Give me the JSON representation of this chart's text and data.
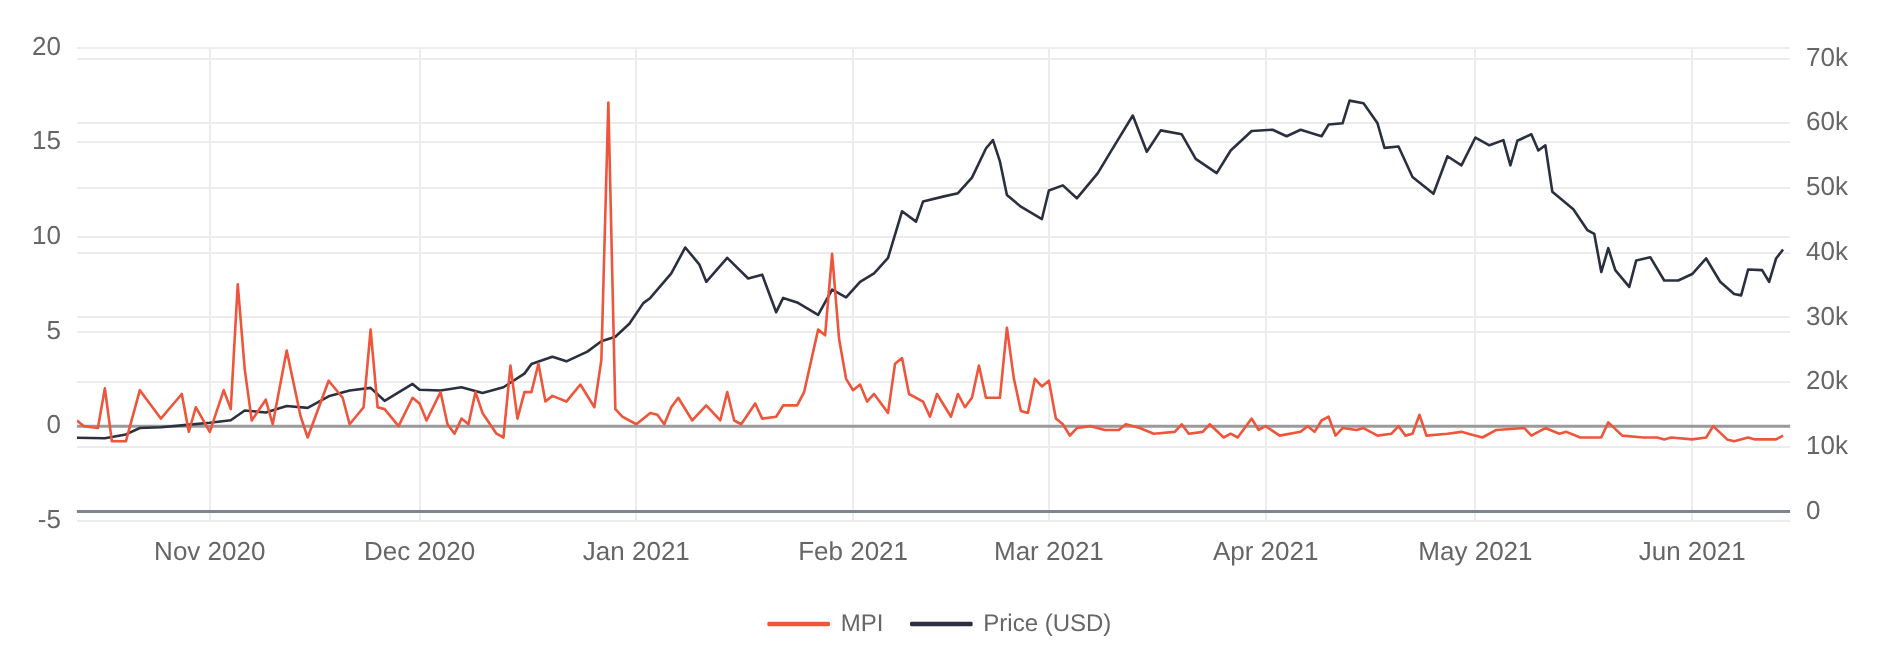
{
  "chart_data": {
    "type": "line",
    "xlim": [
      "2020-10-13",
      "2021-06-15"
    ],
    "xticks": [
      {
        "value": "2020-11-01",
        "label": "Nov 2020"
      },
      {
        "value": "2020-12-01",
        "label": "Dec 2020"
      },
      {
        "value": "2021-01-01",
        "label": "Jan 2021"
      },
      {
        "value": "2021-02-01",
        "label": "Feb 2021"
      },
      {
        "value": "2021-03-01",
        "label": "Mar 2021"
      },
      {
        "value": "2021-04-01",
        "label": "Apr 2021"
      },
      {
        "value": "2021-05-01",
        "label": "May 2021"
      },
      {
        "value": "2021-06-01",
        "label": "Jun 2021"
      }
    ],
    "ylim": [
      -5,
      20
    ],
    "yticks": [
      -5,
      0,
      5,
      10,
      15,
      20
    ],
    "y2lim": [
      -1450,
      71700
    ],
    "y2ticks": [
      {
        "value": 0,
        "label": "0"
      },
      {
        "value": 10000,
        "label": "10k"
      },
      {
        "value": 20000,
        "label": "20k"
      },
      {
        "value": 30000,
        "label": "30k"
      },
      {
        "value": 40000,
        "label": "40k"
      },
      {
        "value": 50000,
        "label": "50k"
      },
      {
        "value": 60000,
        "label": "60k"
      },
      {
        "value": 70000,
        "label": "70k"
      }
    ],
    "grid": true,
    "legend": "bottom",
    "marker": "none",
    "line_style": "solid",
    "ref_lines": [
      {
        "axis": "y",
        "value": 0,
        "color": "#9a9a9a"
      },
      {
        "axis": "y2",
        "value": 0,
        "color": "#7f8590"
      }
    ],
    "series": [
      {
        "name": "MPI",
        "color": "#ef553b",
        "x": [
          "2020-10-13",
          "2020-10-14",
          "2020-10-16",
          "2020-10-17",
          "2020-10-18",
          "2020-10-20",
          "2020-10-22",
          "2020-10-25",
          "2020-10-28",
          "2020-10-29",
          "2020-10-30",
          "2020-11-01",
          "2020-11-03",
          "2020-11-04",
          "2020-11-05",
          "2020-11-06",
          "2020-11-07",
          "2020-11-09",
          "2020-11-10",
          "2020-11-12",
          "2020-11-14",
          "2020-11-15",
          "2020-11-18",
          "2020-11-20",
          "2020-11-21",
          "2020-11-23",
          "2020-11-24",
          "2020-11-25",
          "2020-11-26",
          "2020-11-28",
          "2020-11-30",
          "2020-12-01",
          "2020-12-02",
          "2020-12-04",
          "2020-12-05",
          "2020-12-06",
          "2020-12-07",
          "2020-12-08",
          "2020-12-09",
          "2020-12-10",
          "2020-12-12",
          "2020-12-13",
          "2020-12-14",
          "2020-12-15",
          "2020-12-16",
          "2020-12-17",
          "2020-12-18",
          "2020-12-19",
          "2020-12-20",
          "2020-12-22",
          "2020-12-24",
          "2020-12-26",
          "2020-12-27",
          "2020-12-28",
          "2020-12-29",
          "2020-12-30",
          "2021-01-01",
          "2021-01-03",
          "2021-01-04",
          "2021-01-05",
          "2021-01-06",
          "2021-01-07",
          "2021-01-09",
          "2021-01-11",
          "2021-01-13",
          "2021-01-14",
          "2021-01-15",
          "2021-01-16",
          "2021-01-18",
          "2021-01-19",
          "2021-01-21",
          "2021-01-22",
          "2021-01-24",
          "2021-01-25",
          "2021-01-27",
          "2021-01-28",
          "2021-01-29",
          "2021-01-30",
          "2021-01-31",
          "2021-02-01",
          "2021-02-02",
          "2021-02-03",
          "2021-02-04",
          "2021-02-06",
          "2021-02-07",
          "2021-02-08",
          "2021-02-09",
          "2021-02-11",
          "2021-02-12",
          "2021-02-13",
          "2021-02-15",
          "2021-02-16",
          "2021-02-17",
          "2021-02-18",
          "2021-02-19",
          "2021-02-20",
          "2021-02-22",
          "2021-02-23",
          "2021-02-24",
          "2021-02-25",
          "2021-02-26",
          "2021-02-27",
          "2021-02-28",
          "2021-03-01",
          "2021-03-02",
          "2021-03-03",
          "2021-03-04",
          "2021-03-05",
          "2021-03-07",
          "2021-03-09",
          "2021-03-11",
          "2021-03-12",
          "2021-03-14",
          "2021-03-16",
          "2021-03-19",
          "2021-03-20",
          "2021-03-21",
          "2021-03-23",
          "2021-03-24",
          "2021-03-26",
          "2021-03-27",
          "2021-03-28",
          "2021-03-30",
          "2021-03-31",
          "2021-04-01",
          "2021-04-03",
          "2021-04-06",
          "2021-04-07",
          "2021-04-08",
          "2021-04-09",
          "2021-04-10",
          "2021-04-11",
          "2021-04-12",
          "2021-04-14",
          "2021-04-15",
          "2021-04-17",
          "2021-04-19",
          "2021-04-20",
          "2021-04-21",
          "2021-04-22",
          "2021-04-23",
          "2021-04-24",
          "2021-04-27",
          "2021-04-29",
          "2021-04-30",
          "2021-05-02",
          "2021-05-04",
          "2021-05-08",
          "2021-05-09",
          "2021-05-11",
          "2021-05-13",
          "2021-05-14",
          "2021-05-16",
          "2021-05-19",
          "2021-05-20",
          "2021-05-22",
          "2021-05-25",
          "2021-05-27",
          "2021-05-28",
          "2021-05-29",
          "2021-06-01",
          "2021-06-03",
          "2021-06-04",
          "2021-06-06",
          "2021-06-07",
          "2021-06-09",
          "2021-06-10",
          "2021-06-12",
          "2021-06-13",
          "2021-06-14"
        ],
        "values": [
          0.3,
          0,
          -0.1,
          2.0,
          -0.8,
          -0.8,
          1.9,
          0.4,
          1.7,
          -0.3,
          1.0,
          -0.3,
          1.9,
          0.9,
          7.5,
          3.0,
          0.3,
          1.4,
          0.1,
          4.0,
          0.5,
          -0.6,
          2.4,
          1.5,
          0.1,
          1.0,
          5.1,
          1.0,
          0.9,
          0,
          1.5,
          1.2,
          0.3,
          1.8,
          0.1,
          -0.4,
          0.4,
          0.1,
          1.8,
          0.7,
          -0.4,
          -0.6,
          3.2,
          0.4,
          1.8,
          1.8,
          3.3,
          1.3,
          1.6,
          1.3,
          2.2,
          1.0,
          3.5,
          17.1,
          0.9,
          0.5,
          0.1,
          0.7,
          0.6,
          0.1,
          1.0,
          1.5,
          0.3,
          1.1,
          0.3,
          1.8,
          0.3,
          0.1,
          1.2,
          0.4,
          0.5,
          1.1,
          1.1,
          1.8,
          5.1,
          4.8,
          9.1,
          4.6,
          2.5,
          1.9,
          2.2,
          1.3,
          1.7,
          0.7,
          3.3,
          3.6,
          1.7,
          1.3,
          0.5,
          1.7,
          0.5,
          1.7,
          1.0,
          1.5,
          3.2,
          1.5,
          1.5,
          5.2,
          2.5,
          0.8,
          0.7,
          2.5,
          2.1,
          2.4,
          0.4,
          0.1,
          -0.5,
          -0.1,
          0,
          -0.2,
          -0.2,
          0.1,
          -0.1,
          -0.4,
          -0.3,
          0.1,
          -0.4,
          -0.3,
          0.1,
          -0.6,
          -0.4,
          -0.6,
          0.4,
          -0.2,
          0,
          -0.5,
          -0.3,
          0,
          -0.3,
          0.3,
          0.5,
          -0.5,
          -0.1,
          -0.2,
          -0.1,
          -0.5,
          -0.4,
          0,
          -0.5,
          -0.4,
          0.6,
          -0.5,
          -0.4,
          -0.3,
          -0.4,
          -0.6,
          -0.2,
          -0.1,
          -0.5,
          -0.1,
          -0.4,
          -0.3,
          -0.6,
          -0.6,
          0.2,
          -0.5,
          -0.6,
          -0.6,
          -0.7,
          -0.6,
          -0.7,
          -0.6,
          0,
          -0.7,
          -0.8,
          -0.6,
          -0.7,
          -0.7,
          -0.7,
          -0.5
        ]
      },
      {
        "name": "Price (USD)",
        "color": "#2a3040",
        "axis": "y2",
        "x": [
          "2020-10-13",
          "2020-10-17",
          "2020-10-20",
          "2020-10-22",
          "2020-10-25",
          "2020-10-28",
          "2020-11-01",
          "2020-11-04",
          "2020-11-06",
          "2020-11-09",
          "2020-11-12",
          "2020-11-15",
          "2020-11-18",
          "2020-11-21",
          "2020-11-24",
          "2020-11-26",
          "2020-11-30",
          "2020-12-01",
          "2020-12-04",
          "2020-12-07",
          "2020-12-10",
          "2020-12-13",
          "2020-12-16",
          "2020-12-17",
          "2020-12-20",
          "2020-12-22",
          "2020-12-25",
          "2020-12-27",
          "2020-12-29",
          "2020-12-31",
          "2021-01-02",
          "2021-01-03",
          "2021-01-06",
          "2021-01-08",
          "2021-01-10",
          "2021-01-11",
          "2021-01-14",
          "2021-01-17",
          "2021-01-19",
          "2021-01-21",
          "2021-01-22",
          "2021-01-24",
          "2021-01-27",
          "2021-01-29",
          "2021-01-31",
          "2021-02-02",
          "2021-02-04",
          "2021-02-06",
          "2021-02-08",
          "2021-02-10",
          "2021-02-11",
          "2021-02-14",
          "2021-02-16",
          "2021-02-18",
          "2021-02-20",
          "2021-02-21",
          "2021-02-22",
          "2021-02-23",
          "2021-02-25",
          "2021-02-28",
          "2021-03-01",
          "2021-03-03",
          "2021-03-05",
          "2021-03-08",
          "2021-03-10",
          "2021-03-13",
          "2021-03-15",
          "2021-03-17",
          "2021-03-20",
          "2021-03-22",
          "2021-03-25",
          "2021-03-27",
          "2021-03-30",
          "2021-04-02",
          "2021-04-04",
          "2021-04-06",
          "2021-04-09",
          "2021-04-10",
          "2021-04-12",
          "2021-04-13",
          "2021-04-15",
          "2021-04-17",
          "2021-04-18",
          "2021-04-20",
          "2021-04-22",
          "2021-04-25",
          "2021-04-27",
          "2021-04-29",
          "2021-05-01",
          "2021-05-03",
          "2021-05-05",
          "2021-05-06",
          "2021-05-07",
          "2021-05-09",
          "2021-05-10",
          "2021-05-11",
          "2021-05-12",
          "2021-05-15",
          "2021-05-17",
          "2021-05-18",
          "2021-05-19",
          "2021-05-20",
          "2021-05-21",
          "2021-05-23",
          "2021-05-24",
          "2021-05-26",
          "2021-05-28",
          "2021-05-30",
          "2021-06-01",
          "2021-06-03",
          "2021-06-05",
          "2021-06-07",
          "2021-06-08",
          "2021-06-09",
          "2021-06-11",
          "2021-06-12",
          "2021-06-13",
          "2021-06-14"
        ],
        "values": [
          11400,
          11300,
          11900,
          12900,
          13000,
          13300,
          13700,
          14100,
          15600,
          15300,
          16300,
          16000,
          17800,
          18700,
          19100,
          17100,
          19700,
          18800,
          18700,
          19200,
          18300,
          19200,
          21300,
          22800,
          23900,
          23200,
          24700,
          26300,
          27000,
          29000,
          32200,
          33000,
          36800,
          40800,
          38200,
          35500,
          39200,
          36000,
          36600,
          30800,
          33000,
          32300,
          30400,
          34300,
          33100,
          35500,
          36800,
          39200,
          46400,
          44800,
          47900,
          48700,
          49200,
          51600,
          56100,
          57400,
          54100,
          48900,
          47100,
          45200,
          49600,
          50400,
          48400,
          52300,
          55900,
          61200,
          55600,
          58900,
          58300,
          54500,
          52300,
          55800,
          58800,
          59000,
          58000,
          59000,
          58000,
          59800,
          60000,
          63500,
          63100,
          60000,
          56200,
          56400,
          51700,
          49100,
          54900,
          53500,
          57800,
          56600,
          57400,
          53500,
          57300,
          58300,
          55800,
          56600,
          49400,
          46700,
          43500,
          42900,
          37000,
          40700,
          37300,
          34700,
          38800,
          39300,
          35700,
          35700,
          36700,
          39100,
          35500,
          33600,
          33400,
          37400,
          37300,
          35500,
          39100,
          40500
        ]
      }
    ]
  }
}
